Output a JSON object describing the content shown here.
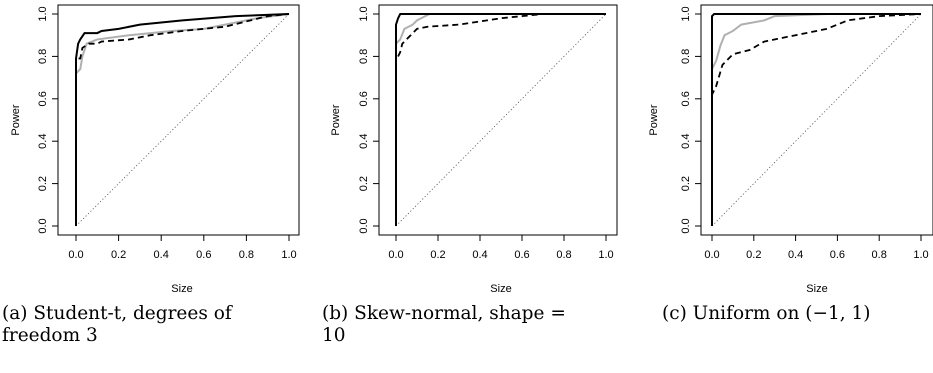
{
  "chart_data": [
    {
      "type": "line",
      "caption_lines": [
        "(a) Student-t, degrees of",
        "freedom 3"
      ],
      "xlabel": "Size",
      "ylabel": "Power",
      "xlim": [
        0,
        1
      ],
      "ylim": [
        0,
        1
      ],
      "xticks": [
        "0.0",
        "0.2",
        "0.4",
        "0.6",
        "0.8",
        "1.0"
      ],
      "yticks": [
        "0.0",
        "0.2",
        "0.4",
        "0.6",
        "0.8",
        "1.0"
      ],
      "series": [
        {
          "style": "solid-black",
          "points": [
            [
              0,
              0
            ],
            [
              0,
              0.79
            ],
            [
              0.01,
              0.86
            ],
            [
              0.02,
              0.88
            ],
            [
              0.04,
              0.91
            ],
            [
              0.1,
              0.91
            ],
            [
              0.12,
              0.92
            ],
            [
              0.2,
              0.93
            ],
            [
              0.3,
              0.95
            ],
            [
              0.5,
              0.97
            ],
            [
              0.75,
              0.99
            ],
            [
              1,
              1
            ]
          ]
        },
        {
          "style": "solid-gray",
          "points": [
            [
              0,
              0
            ],
            [
              0,
              0.72
            ],
            [
              0.02,
              0.74
            ],
            [
              0.03,
              0.8
            ],
            [
              0.05,
              0.86
            ],
            [
              0.1,
              0.88
            ],
            [
              0.25,
              0.9
            ],
            [
              0.45,
              0.92
            ],
            [
              0.6,
              0.93
            ],
            [
              0.7,
              0.95
            ],
            [
              0.85,
              0.98
            ],
            [
              1,
              1
            ]
          ]
        },
        {
          "style": "dashed-black",
          "points": [
            [
              0,
              0
            ],
            [
              0,
              0.79
            ],
            [
              0.02,
              0.79
            ],
            [
              0.03,
              0.84
            ],
            [
              0.06,
              0.86
            ],
            [
              0.1,
              0.86
            ],
            [
              0.12,
              0.87
            ],
            [
              0.25,
              0.88
            ],
            [
              0.35,
              0.9
            ],
            [
              0.5,
              0.92
            ],
            [
              0.7,
              0.94
            ],
            [
              0.9,
              0.99
            ],
            [
              1,
              1
            ]
          ]
        },
        {
          "style": "dotted-diagonal",
          "points": [
            [
              0,
              0
            ],
            [
              1,
              1
            ]
          ]
        }
      ]
    },
    {
      "type": "line",
      "caption_lines": [
        "(b) Skew-normal, shape =",
        "10"
      ],
      "xlabel": "Size",
      "ylabel": "Power",
      "xlim": [
        0,
        1
      ],
      "ylim": [
        0,
        1
      ],
      "xticks": [
        "0.0",
        "0.2",
        "0.4",
        "0.6",
        "0.8",
        "1.0"
      ],
      "yticks": [
        "0.0",
        "0.2",
        "0.4",
        "0.6",
        "0.8",
        "1.0"
      ],
      "series": [
        {
          "style": "solid-black",
          "points": [
            [
              0,
              0
            ],
            [
              0,
              0.95
            ],
            [
              0.01,
              0.98
            ],
            [
              0.02,
              1
            ],
            [
              1,
              1
            ]
          ]
        },
        {
          "style": "solid-gray",
          "points": [
            [
              0,
              0
            ],
            [
              0,
              0.86
            ],
            [
              0.02,
              0.88
            ],
            [
              0.04,
              0.93
            ],
            [
              0.08,
              0.95
            ],
            [
              0.1,
              0.97
            ],
            [
              0.16,
              1
            ],
            [
              1,
              1
            ]
          ]
        },
        {
          "style": "dashed-black",
          "points": [
            [
              0,
              0
            ],
            [
              0,
              0.78
            ],
            [
              0.02,
              0.82
            ],
            [
              0.03,
              0.86
            ],
            [
              0.06,
              0.89
            ],
            [
              0.1,
              0.93
            ],
            [
              0.15,
              0.94
            ],
            [
              0.3,
              0.95
            ],
            [
              0.5,
              0.98
            ],
            [
              0.7,
              1
            ],
            [
              1,
              1
            ]
          ]
        },
        {
          "style": "dotted-diagonal",
          "points": [
            [
              0,
              0
            ],
            [
              1,
              1
            ]
          ]
        }
      ]
    },
    {
      "type": "line",
      "caption_lines": [
        "(c) Uniform on (−1, 1)"
      ],
      "xlabel": "Size",
      "ylabel": "Power",
      "xlim": [
        0,
        1
      ],
      "ylim": [
        0,
        1
      ],
      "xticks": [
        "0.0",
        "0.2",
        "0.4",
        "0.6",
        "0.8",
        "1.0"
      ],
      "yticks": [
        "0.0",
        "0.2",
        "0.4",
        "0.6",
        "0.8",
        "1.0"
      ],
      "series": [
        {
          "style": "solid-black",
          "points": [
            [
              0,
              0
            ],
            [
              0,
              0.99
            ],
            [
              0.01,
              1
            ],
            [
              1,
              1
            ]
          ]
        },
        {
          "style": "solid-gray",
          "points": [
            [
              0,
              0
            ],
            [
              0,
              0.74
            ],
            [
              0.02,
              0.78
            ],
            [
              0.04,
              0.85
            ],
            [
              0.06,
              0.9
            ],
            [
              0.1,
              0.92
            ],
            [
              0.14,
              0.95
            ],
            [
              0.25,
              0.97
            ],
            [
              0.3,
              0.99
            ],
            [
              0.55,
              1
            ],
            [
              1,
              1
            ]
          ]
        },
        {
          "style": "dashed-black",
          "points": [
            [
              0,
              0
            ],
            [
              0,
              0.62
            ],
            [
              0.02,
              0.66
            ],
            [
              0.05,
              0.76
            ],
            [
              0.1,
              0.81
            ],
            [
              0.18,
              0.83
            ],
            [
              0.25,
              0.87
            ],
            [
              0.4,
              0.9
            ],
            [
              0.55,
              0.93
            ],
            [
              0.65,
              0.97
            ],
            [
              0.8,
              0.99
            ],
            [
              1,
              1
            ]
          ]
        },
        {
          "style": "dotted-diagonal",
          "points": [
            [
              0,
              0
            ],
            [
              1,
              1
            ]
          ]
        }
      ]
    }
  ]
}
